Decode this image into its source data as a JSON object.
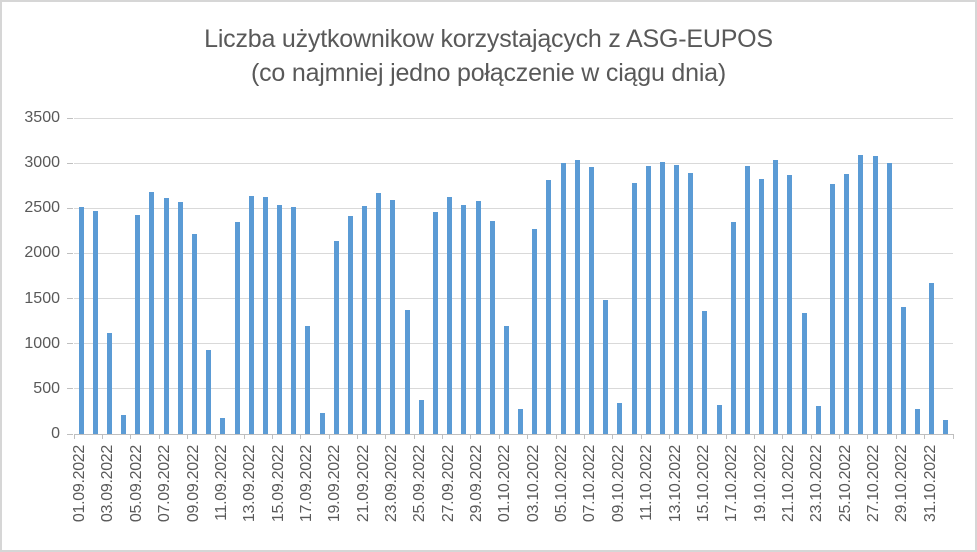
{
  "colors": {
    "bar": "#5B9BD5",
    "gridline": "#D9D9D9",
    "axis": "#BFBFBF",
    "text": "#595959",
    "frame_border": "#D6D6D6",
    "background": "#FFFFFF"
  },
  "chart_data": {
    "type": "bar",
    "title": "Liczba użytkownikow korzystających z ASG-EUPOS",
    "subtitle": "(co najmniej jedno połączenie w ciągu dnia)",
    "ylabel": "",
    "xlabel": "",
    "ylim": [
      0,
      3500
    ],
    "yticks": [
      0,
      500,
      1000,
      1500,
      2000,
      2500,
      3000,
      3500
    ],
    "grid": true,
    "legend": false,
    "xlabel_every": 2,
    "bar_color": "#5B9BD5",
    "categories": [
      "01.09.2022",
      "02.09.2022",
      "03.09.2022",
      "04.09.2022",
      "05.09.2022",
      "06.09.2022",
      "07.09.2022",
      "08.09.2022",
      "09.09.2022",
      "10.09.2022",
      "11.09.2022",
      "12.09.2022",
      "13.09.2022",
      "14.09.2022",
      "15.09.2022",
      "16.09.2022",
      "17.09.2022",
      "18.09.2022",
      "19.09.2022",
      "20.09.2022",
      "21.09.2022",
      "22.09.2022",
      "23.09.2022",
      "24.09.2022",
      "25.09.2022",
      "26.09.2022",
      "27.09.2022",
      "28.09.2022",
      "29.09.2022",
      "30.09.2022",
      "01.10.2022",
      "02.10.2022",
      "03.10.2022",
      "04.10.2022",
      "05.10.2022",
      "06.10.2022",
      "07.10.2022",
      "08.10.2022",
      "09.10.2022",
      "10.10.2022",
      "11.10.2022",
      "12.10.2022",
      "13.10.2022",
      "14.10.2022",
      "15.10.2022",
      "16.10.2022",
      "17.10.2022",
      "18.10.2022",
      "19.10.2022",
      "20.10.2022",
      "21.10.2022",
      "22.10.2022",
      "23.10.2022",
      "24.10.2022",
      "25.10.2022",
      "26.10.2022",
      "27.10.2022",
      "28.10.2022",
      "29.10.2022",
      "30.10.2022",
      "31.10.2022",
      "01.11.2022"
    ],
    "values": [
      2510,
      2470,
      1120,
      210,
      2430,
      2680,
      2610,
      2570,
      2220,
      930,
      180,
      2350,
      2640,
      2630,
      2540,
      2510,
      1200,
      230,
      2140,
      2420,
      2520,
      2670,
      2590,
      1370,
      380,
      2460,
      2630,
      2540,
      2580,
      2360,
      1200,
      280,
      2270,
      2810,
      3000,
      3040,
      2960,
      1480,
      340,
      2780,
      2970,
      3010,
      2980,
      2890,
      1360,
      320,
      2350,
      2970,
      2820,
      3030,
      2870,
      1340,
      310,
      2770,
      2880,
      3090,
      3080,
      3000,
      1410,
      280,
      1670,
      150
    ]
  }
}
